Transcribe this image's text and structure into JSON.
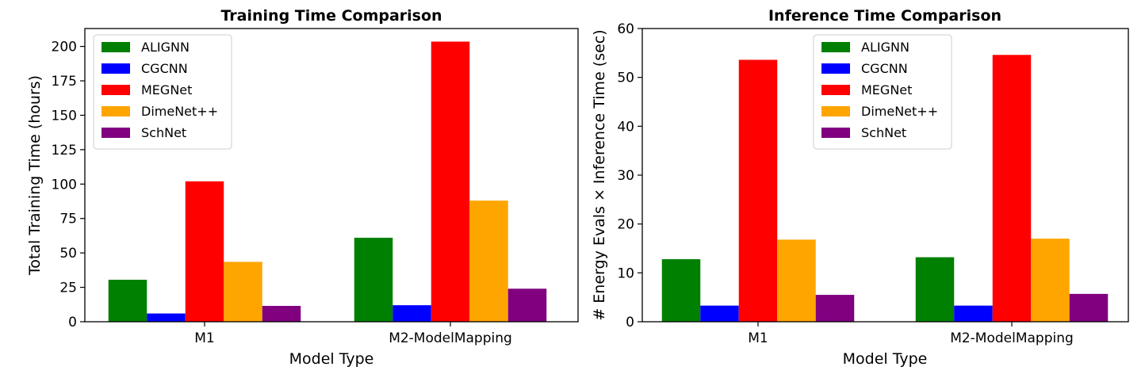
{
  "chart_data": [
    {
      "type": "bar",
      "title": "Training Time Comparison",
      "xlabel": "Model Type",
      "ylabel": "Total Training Time (hours)",
      "categories": [
        "M1",
        "M2-ModelMapping"
      ],
      "ylim": [
        0,
        213
      ],
      "yticks": [
        0,
        25,
        50,
        75,
        100,
        125,
        150,
        175,
        200
      ],
      "grid": false,
      "legend_position": "top-left",
      "series": [
        {
          "name": "ALIGNN",
          "color": "#008000",
          "values": [
            30.5,
            61
          ]
        },
        {
          "name": "CGCNN",
          "color": "#0000ff",
          "values": [
            6,
            12
          ]
        },
        {
          "name": "MEGNet",
          "color": "#ff0000",
          "values": [
            102,
            203.5
          ]
        },
        {
          "name": "DimeNet++",
          "color": "#ffa500",
          "values": [
            43.5,
            88
          ]
        },
        {
          "name": "SchNet",
          "color": "#800080",
          "values": [
            11.5,
            24
          ]
        }
      ]
    },
    {
      "type": "bar",
      "title": "Inference Time Comparison",
      "xlabel": "Model Type",
      "ylabel": "# Energy Evals × Inference Time (sec)",
      "categories": [
        "M1",
        "M2-ModelMapping"
      ],
      "ylim": [
        0,
        60
      ],
      "yticks": [
        0,
        10,
        20,
        30,
        40,
        50,
        60
      ],
      "grid": false,
      "legend_position": "top-center",
      "series": [
        {
          "name": "ALIGNN",
          "color": "#008000",
          "values": [
            12.8,
            13.2
          ]
        },
        {
          "name": "CGCNN",
          "color": "#0000ff",
          "values": [
            3.3,
            3.3
          ]
        },
        {
          "name": "MEGNet",
          "color": "#ff0000",
          "values": [
            53.6,
            54.6
          ]
        },
        {
          "name": "DimeNet++",
          "color": "#ffa500",
          "values": [
            16.8,
            17
          ]
        },
        {
          "name": "SchNet",
          "color": "#800080",
          "values": [
            5.5,
            5.7
          ]
        }
      ]
    }
  ]
}
